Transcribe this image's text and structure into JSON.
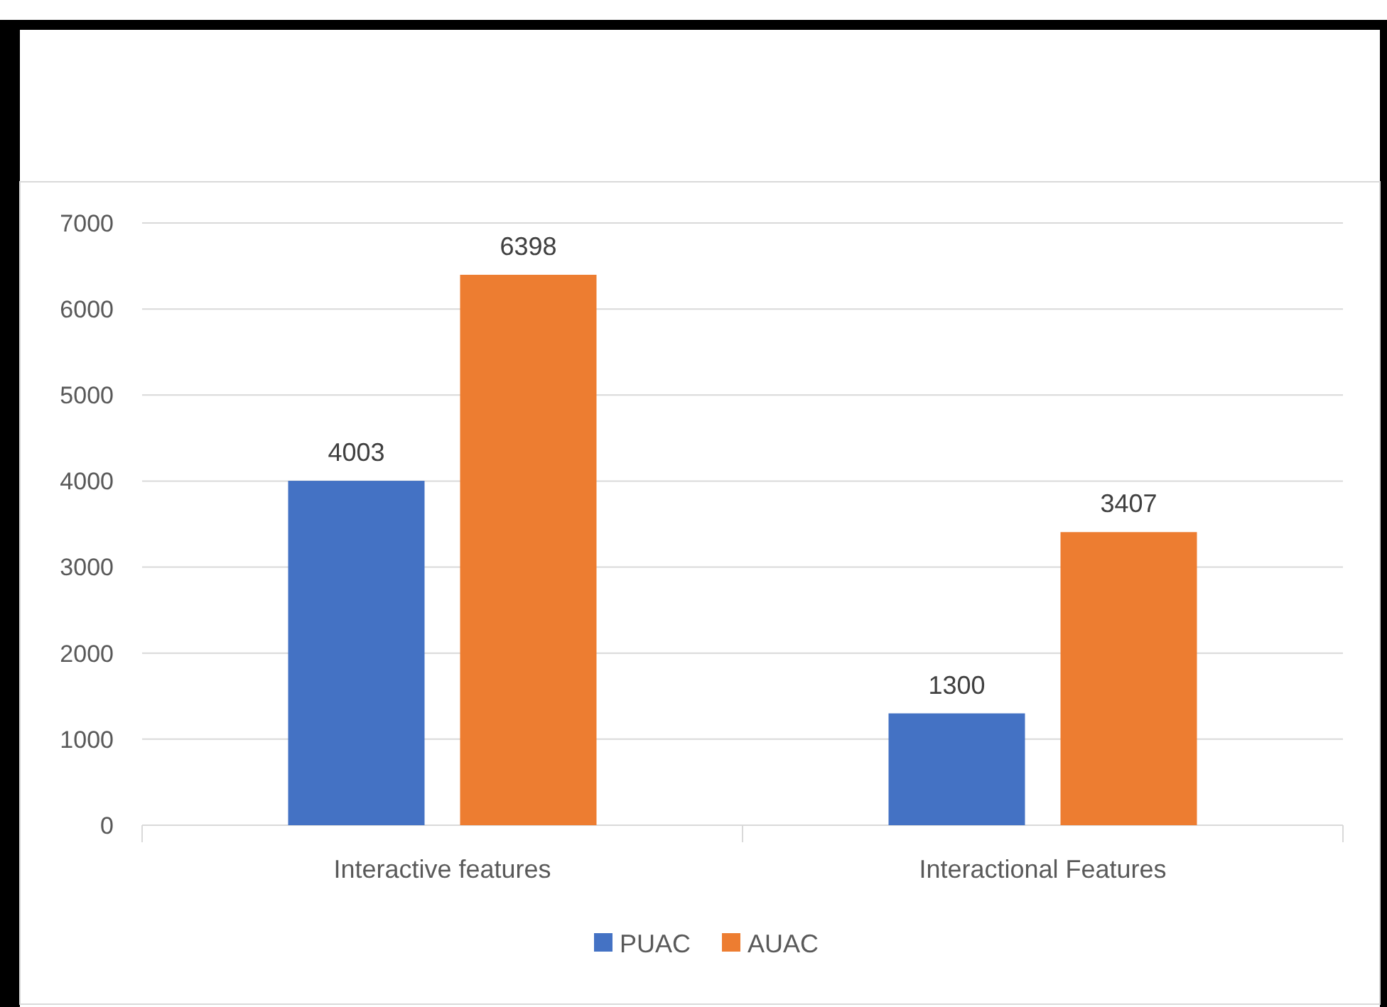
{
  "chart_data": {
    "type": "bar",
    "categories": [
      "Interactive features",
      "Interactional Features"
    ],
    "series": [
      {
        "name": "PUAC",
        "color": "#4472c4",
        "values": [
          4003,
          1300
        ]
      },
      {
        "name": "AUAC",
        "color": "#ed7d31",
        "values": [
          6398,
          3407
        ]
      }
    ],
    "ylim": [
      0,
      7000
    ],
    "yticks": [
      0,
      1000,
      2000,
      3000,
      4000,
      5000,
      6000,
      7000
    ],
    "grid": "y",
    "data_labels": true,
    "legend": "bottom"
  }
}
